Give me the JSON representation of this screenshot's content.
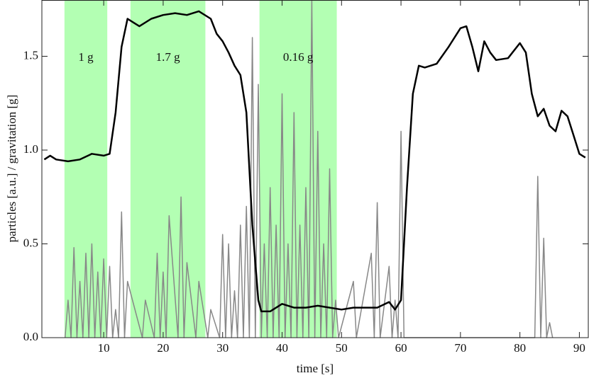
{
  "chart_data": {
    "type": "line",
    "xlabel": "time [s]",
    "ylabel": "particles [a.u.] / gravitation [g]",
    "xlim": [
      -0.4,
      91.5
    ],
    "ylim": [
      0,
      1.8
    ],
    "xticks": [
      10,
      20,
      30,
      40,
      50,
      60,
      70,
      80,
      90
    ],
    "yticks": [
      {
        "value": 0,
        "label": "0.0"
      },
      {
        "value": 0.5,
        "label": "0.5"
      },
      {
        "value": 1,
        "label": "1.0"
      },
      {
        "value": 1.5,
        "label": "1.5"
      }
    ],
    "shaded": [
      {
        "xlim": [
          3.4,
          10.6
        ],
        "label": "1 g"
      },
      {
        "xlim": [
          14.5,
          27.1
        ],
        "label": "1.7 g"
      },
      {
        "xlim": [
          36.2,
          49.2
        ],
        "label": "0.16 g"
      }
    ],
    "shade_color": "#b3ffb3",
    "series": [
      {
        "color": "#888888",
        "x": [
          3.5,
          4,
          4.5,
          5,
          5.5,
          6,
          6.5,
          7,
          7.5,
          8,
          8.5,
          9,
          9.5,
          10,
          10.5,
          11,
          11.5,
          12,
          12.5,
          13,
          13.5,
          14,
          16.5,
          17,
          18.5,
          19,
          19.5,
          20,
          20.5,
          21,
          22.5,
          23,
          23.5,
          24,
          25.5,
          26,
          27.5,
          28,
          29.5,
          30,
          30.5,
          31,
          31.5,
          32,
          32.5,
          33,
          33.5,
          34,
          34.5,
          35,
          35.5,
          36,
          36.5,
          37,
          37.5,
          38,
          38.5,
          39,
          39.5,
          40,
          40.5,
          41,
          41.5,
          42,
          42.5,
          43,
          43.5,
          44,
          44.5,
          45,
          45.5,
          46,
          46.5,
          47,
          47.5,
          48,
          48.5,
          49,
          49.5,
          52,
          52.5,
          55,
          55.5,
          56,
          56.5,
          58,
          58.5,
          59,
          59.5,
          60,
          60.5,
          82.5,
          83,
          83.5,
          84,
          84.5,
          85,
          85.5
        ],
        "values": [
          0,
          0.2,
          0,
          0.48,
          0,
          0.3,
          0,
          0.45,
          0,
          0.5,
          0,
          0.35,
          0,
          0.42,
          0,
          0.38,
          0,
          0.15,
          0,
          0.67,
          0,
          0.3,
          0,
          0.2,
          0,
          0.45,
          0,
          0.35,
          0,
          0.65,
          0,
          0.75,
          0,
          0.4,
          0,
          0.3,
          0,
          0.15,
          0,
          0.55,
          0,
          0.5,
          0,
          0.25,
          0,
          0.6,
          0,
          0.7,
          0,
          1.6,
          0,
          1.35,
          0,
          0.5,
          0,
          0.8,
          0,
          0.6,
          0,
          1.3,
          0,
          0.5,
          0,
          1.2,
          0,
          0.6,
          0,
          0.8,
          0,
          1.8,
          0,
          1.1,
          0,
          0.5,
          0,
          0.9,
          0,
          0.2,
          0,
          0.3,
          0,
          0.45,
          0,
          0.72,
          0,
          0.38,
          0,
          0.2,
          0,
          1.1,
          0,
          0,
          0.86,
          0,
          0.53,
          0,
          0.08,
          0
        ]
      },
      {
        "color": "#000000",
        "x": [
          0,
          1,
          2,
          4,
          6,
          8,
          10,
          11,
          12,
          13,
          14,
          15,
          16,
          18,
          20,
          22,
          24,
          26,
          28,
          29,
          30,
          31,
          32,
          33,
          34,
          35,
          36,
          36.5,
          38,
          40,
          42,
          44,
          46,
          48,
          50,
          52,
          54,
          56,
          58,
          59,
          60,
          61,
          62,
          63,
          64,
          66,
          68,
          70,
          71,
          72,
          73,
          74,
          75,
          76,
          78,
          80,
          81,
          82,
          83,
          84,
          85,
          86,
          87,
          88,
          89,
          90,
          91
        ],
        "values": [
          0.95,
          0.97,
          0.95,
          0.94,
          0.95,
          0.98,
          0.97,
          0.98,
          1.2,
          1.55,
          1.7,
          1.68,
          1.66,
          1.7,
          1.72,
          1.73,
          1.72,
          1.74,
          1.7,
          1.62,
          1.58,
          1.52,
          1.45,
          1.4,
          1.2,
          0.6,
          0.2,
          0.14,
          0.14,
          0.18,
          0.16,
          0.16,
          0.17,
          0.16,
          0.15,
          0.16,
          0.16,
          0.16,
          0.19,
          0.15,
          0.2,
          0.8,
          1.3,
          1.45,
          1.44,
          1.46,
          1.55,
          1.65,
          1.66,
          1.55,
          1.42,
          1.58,
          1.52,
          1.48,
          1.49,
          1.57,
          1.52,
          1.3,
          1.18,
          1.22,
          1.13,
          1.1,
          1.21,
          1.18,
          1.08,
          0.98,
          0.96
        ]
      }
    ]
  }
}
